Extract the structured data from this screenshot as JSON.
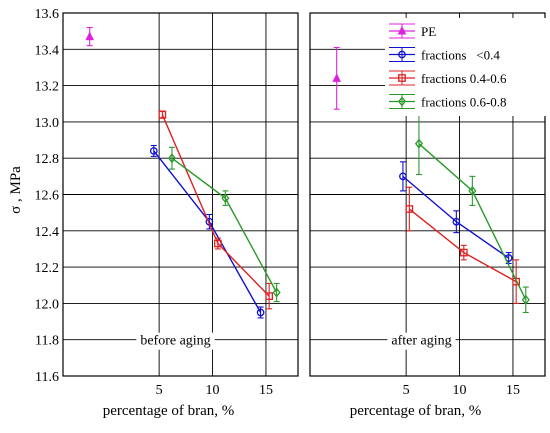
{
  "chart_data": {
    "type": "line",
    "ylabel": "σ , MPa",
    "ylim": [
      11.6,
      13.6
    ],
    "y_ticks": [
      "11.6",
      "11.8",
      "12.0",
      "12.2",
      "12.4",
      "12.6",
      "12.8",
      "13.0",
      "13.2",
      "13.4",
      "13.6"
    ],
    "grid": true,
    "legend_position": "top-right of second panel",
    "panels": [
      {
        "annotation": "before aging",
        "xlabel": "percentage of bran, %",
        "xlim": [
          -4,
          18
        ],
        "x_ticks": [
          "5",
          "10",
          "15"
        ],
        "series": [
          {
            "name": "PE",
            "color": "#e020e0",
            "marker": "triangle",
            "points": [
              {
                "x": -1.5,
                "y": 13.47,
                "err": 0.05
              }
            ]
          },
          {
            "name": "fractions   <0.4",
            "color": "#1010d0",
            "marker": "circle",
            "points": [
              {
                "x": 4.5,
                "y": 12.84,
                "err": 0.03
              },
              {
                "x": 9.7,
                "y": 12.45,
                "err": 0.04
              },
              {
                "x": 14.5,
                "y": 11.95,
                "err": 0.03
              }
            ]
          },
          {
            "name": "fractions 0.4-0.6",
            "color": "#e02020",
            "marker": "square",
            "points": [
              {
                "x": 5.3,
                "y": 13.04,
                "err": 0.02
              },
              {
                "x": 10.5,
                "y": 12.33,
                "err": 0.03
              },
              {
                "x": 15.3,
                "y": 12.04,
                "err": 0.07
              }
            ]
          },
          {
            "name": "fractions 0.6-0.8",
            "color": "#2a9a2a",
            "marker": "diamond",
            "points": [
              {
                "x": 6.2,
                "y": 12.8,
                "err": 0.06
              },
              {
                "x": 11.2,
                "y": 12.58,
                "err": 0.04
              },
              {
                "x": 16.0,
                "y": 12.06,
                "err": 0.05
              }
            ]
          }
        ]
      },
      {
        "annotation": "after aging",
        "xlabel": "percentage of bran, %",
        "xlim": [
          -4,
          18
        ],
        "x_ticks": [
          "5",
          "10",
          "15"
        ],
        "series": [
          {
            "name": "PE",
            "color": "#e020e0",
            "marker": "triangle",
            "points": [
              {
                "x": -1.5,
                "y": 13.24,
                "err": 0.17
              }
            ]
          },
          {
            "name": "fractions   <0.4",
            "color": "#1010d0",
            "marker": "circle",
            "points": [
              {
                "x": 4.7,
                "y": 12.7,
                "err": 0.08
              },
              {
                "x": 9.7,
                "y": 12.45,
                "err": 0.06
              },
              {
                "x": 14.6,
                "y": 12.25,
                "err": 0.03
              }
            ]
          },
          {
            "name": "fractions 0.4-0.6",
            "color": "#e02020",
            "marker": "square",
            "points": [
              {
                "x": 5.3,
                "y": 12.52,
                "err": 0.12
              },
              {
                "x": 10.4,
                "y": 12.28,
                "err": 0.04
              },
              {
                "x": 15.3,
                "y": 12.12,
                "err": 0.12
              }
            ]
          },
          {
            "name": "fractions 0.6-0.8",
            "color": "#2a9a2a",
            "marker": "diamond",
            "points": [
              {
                "x": 6.2,
                "y": 12.88,
                "err": 0.17
              },
              {
                "x": 11.2,
                "y": 12.62,
                "err": 0.08
              },
              {
                "x": 16.2,
                "y": 12.02,
                "err": 0.07
              }
            ]
          }
        ]
      }
    ]
  }
}
